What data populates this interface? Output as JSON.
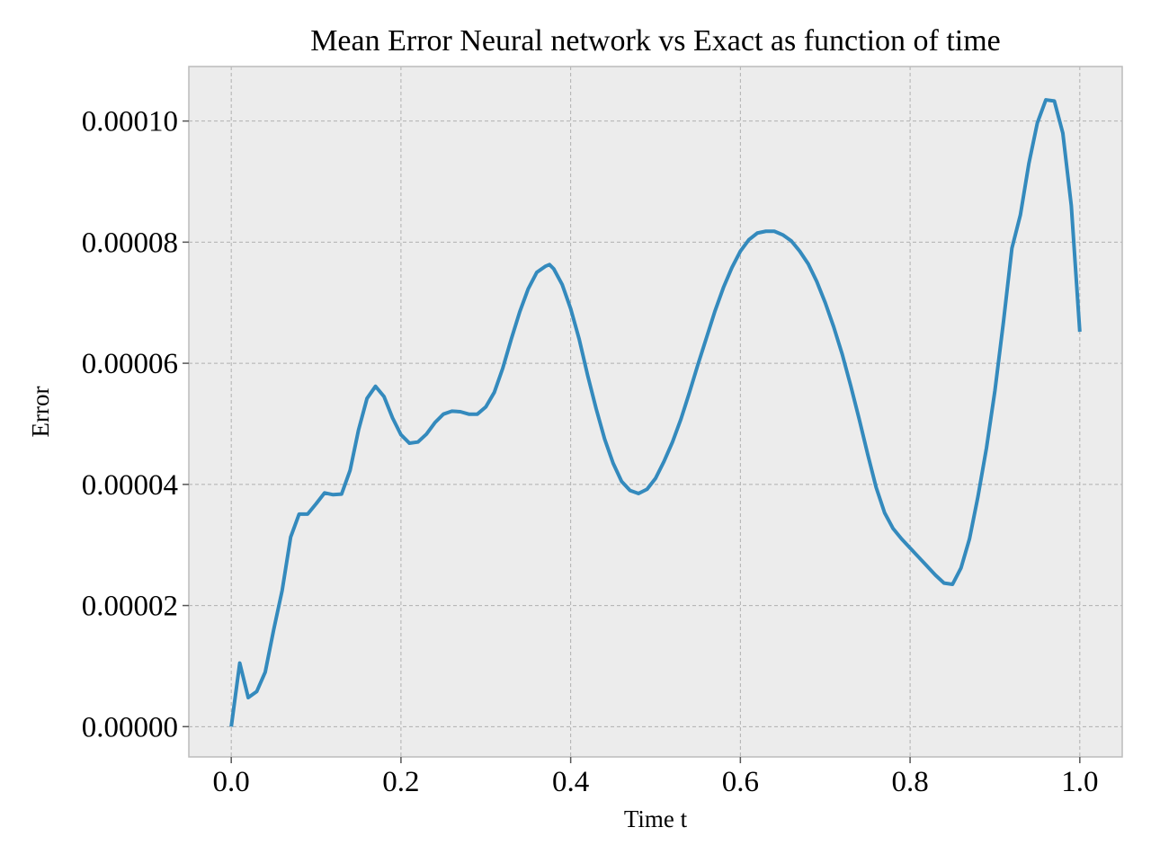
{
  "chart_data": {
    "type": "line",
    "title": "Mean Error Neural network vs Exact as function of time",
    "xlabel": "Time t",
    "ylabel": "Error",
    "xlim": [
      -0.05,
      1.05
    ],
    "ylim": [
      -5e-06,
      0.000109
    ],
    "xticks": [
      0.0,
      0.2,
      0.4,
      0.6,
      0.8,
      1.0
    ],
    "xtick_labels": [
      "0.0",
      "0.2",
      "0.4",
      "0.6",
      "0.8",
      "1.0"
    ],
    "yticks": [
      0.0,
      2e-05,
      4e-05,
      6e-05,
      8e-05,
      0.0001
    ],
    "ytick_labels": [
      "0.00000",
      "0.00002",
      "0.00004",
      "0.00006",
      "0.00008",
      "0.00010"
    ],
    "grid": true,
    "colors": {
      "background": "#ececec",
      "spine": "#bcbcbc",
      "series": "#348abd"
    },
    "series": [
      {
        "color": "#348abd",
        "x": [
          0.0,
          0.01,
          0.02,
          0.03,
          0.04,
          0.05,
          0.06,
          0.07,
          0.08,
          0.09,
          0.1,
          0.11,
          0.12,
          0.13,
          0.14,
          0.15,
          0.16,
          0.17,
          0.18,
          0.19,
          0.2,
          0.21,
          0.22,
          0.23,
          0.24,
          0.25,
          0.26,
          0.27,
          0.28,
          0.29,
          0.3,
          0.31,
          0.32,
          0.33,
          0.34,
          0.35,
          0.36,
          0.37,
          0.375,
          0.38,
          0.39,
          0.4,
          0.41,
          0.42,
          0.43,
          0.44,
          0.45,
          0.46,
          0.47,
          0.48,
          0.49,
          0.5,
          0.51,
          0.52,
          0.53,
          0.54,
          0.55,
          0.56,
          0.57,
          0.58,
          0.59,
          0.6,
          0.61,
          0.62,
          0.63,
          0.64,
          0.645,
          0.65,
          0.66,
          0.67,
          0.68,
          0.69,
          0.7,
          0.71,
          0.72,
          0.73,
          0.74,
          0.75,
          0.76,
          0.77,
          0.78,
          0.79,
          0.8,
          0.81,
          0.82,
          0.83,
          0.84,
          0.85,
          0.86,
          0.87,
          0.88,
          0.89,
          0.9,
          0.91,
          0.92,
          0.93,
          0.94,
          0.95,
          0.96,
          0.97,
          0.98,
          0.99,
          1.0
        ],
        "y": [
          0.0,
          1.05e-05,
          4.8e-06,
          5.8e-06,
          9e-06,
          1.6e-05,
          2.25e-05,
          3.13e-05,
          3.51e-05,
          3.51e-05,
          3.68e-05,
          3.86e-05,
          3.83e-05,
          3.84e-05,
          4.23e-05,
          4.9e-05,
          5.42e-05,
          5.62e-05,
          5.45e-05,
          5.1e-05,
          4.82e-05,
          4.68e-05,
          4.7e-05,
          4.83e-05,
          5.02e-05,
          5.16e-05,
          5.21e-05,
          5.2e-05,
          5.16e-05,
          5.16e-05,
          5.28e-05,
          5.52e-05,
          5.92e-05,
          6.4e-05,
          6.85e-05,
          7.23e-05,
          7.5e-05,
          7.6e-05,
          7.63e-05,
          7.56e-05,
          7.3e-05,
          6.9e-05,
          6.4e-05,
          5.8e-05,
          5.25e-05,
          4.75e-05,
          4.35e-05,
          4.05e-05,
          3.9e-05,
          3.85e-05,
          3.92e-05,
          4.1e-05,
          4.38e-05,
          4.7e-05,
          5.08e-05,
          5.52e-05,
          5.98e-05,
          6.42e-05,
          6.86e-05,
          7.25e-05,
          7.58e-05,
          7.85e-05,
          8.04e-05,
          8.15e-05,
          8.18e-05,
          8.18e-05,
          8.15e-05,
          8.12e-05,
          8.02e-05,
          7.85e-05,
          7.64e-05,
          7.35e-05,
          7e-05,
          6.6e-05,
          6.15e-05,
          5.63e-05,
          5.08e-05,
          4.5e-05,
          3.95e-05,
          3.53e-05,
          3.27e-05,
          3.1e-05,
          2.95e-05,
          2.8e-05,
          2.65e-05,
          2.5e-05,
          2.37e-05,
          2.35e-05,
          2.62e-05,
          3.1e-05,
          3.8e-05,
          4.6e-05,
          5.55e-05,
          6.68e-05,
          7.9e-05,
          8.45e-05,
          9.3e-05,
          9.97e-05,
          0.0001035,
          0.0001033,
          9.8e-05,
          8.6e-05,
          6.52e-05
        ]
      }
    ]
  }
}
